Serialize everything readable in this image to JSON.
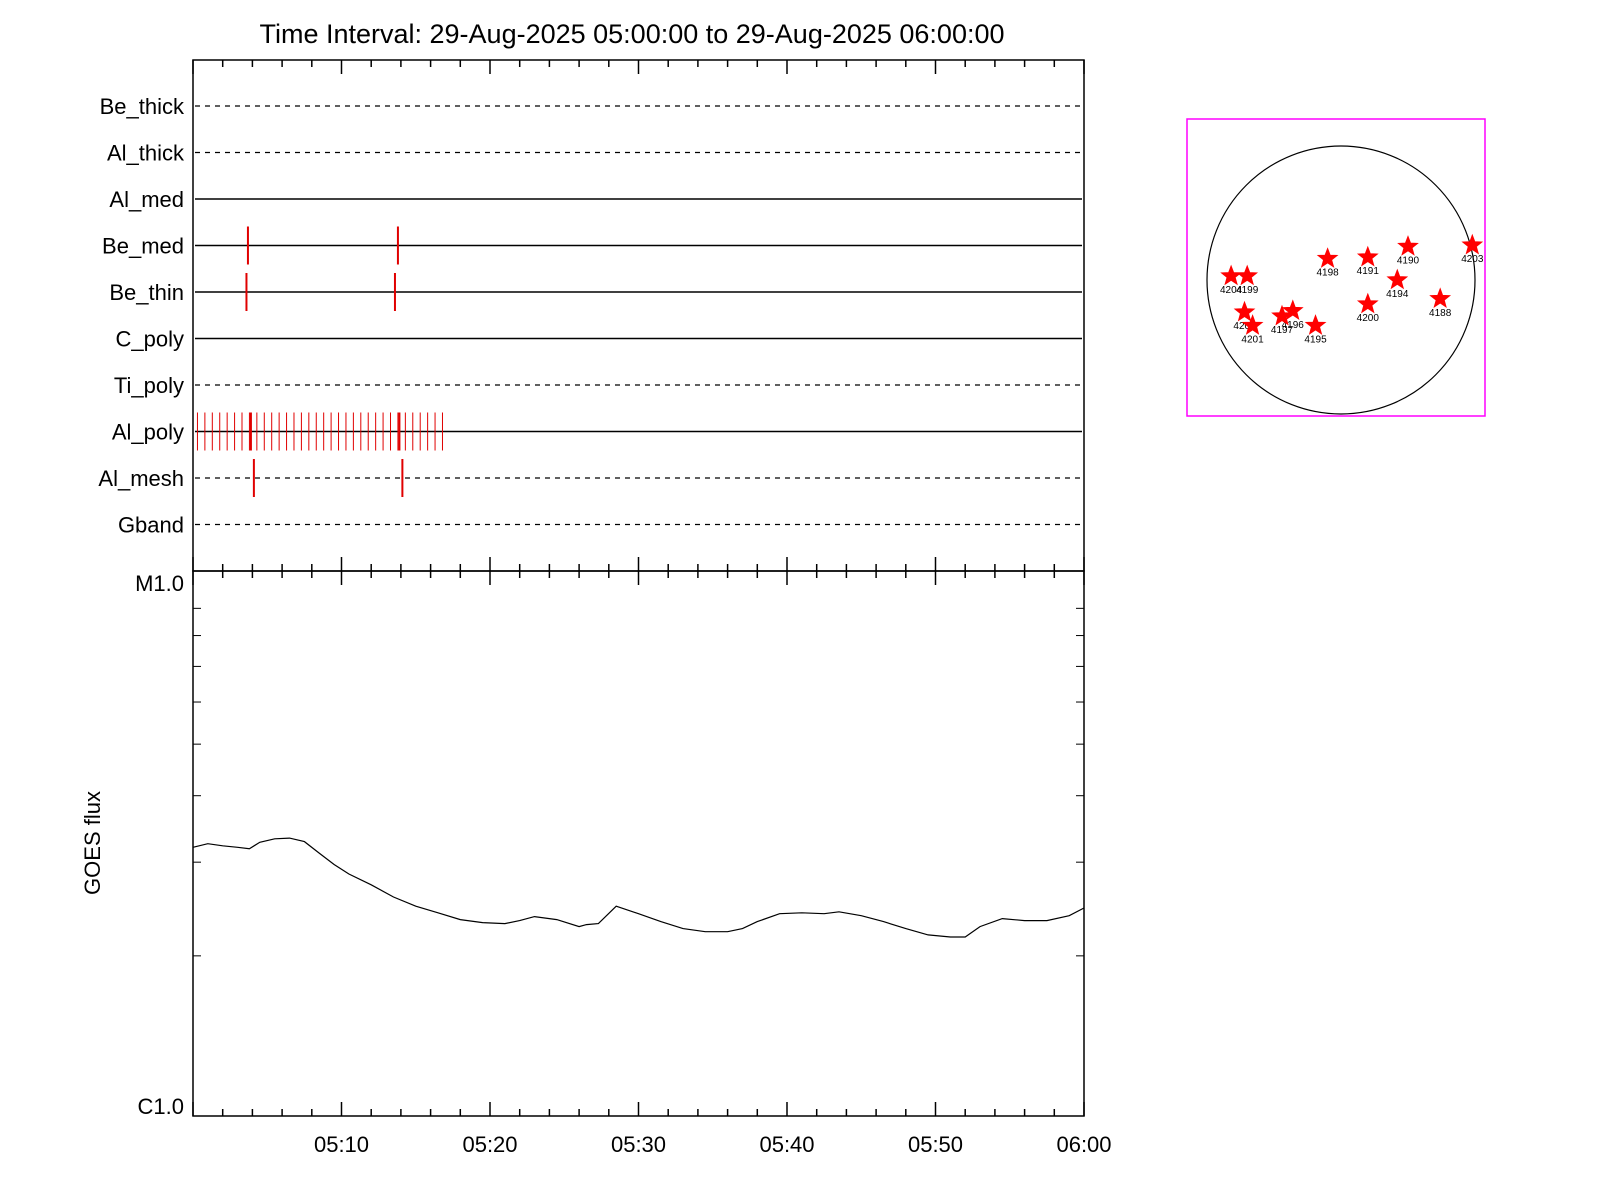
{
  "title": "Time Interval: 29-Aug-2025 05:00:00 to 29-Aug-2025 06:00:00",
  "chart_data": [
    {
      "type": "event-timeline",
      "xlim_minutes": [
        0,
        60
      ],
      "rows": [
        {
          "name": "Be_thick",
          "style": "dashed",
          "events": [],
          "dense": []
        },
        {
          "name": "Al_thick",
          "style": "dashed",
          "events": [],
          "dense": []
        },
        {
          "name": "Al_med",
          "style": "solid",
          "events": [],
          "dense": []
        },
        {
          "name": "Be_med",
          "style": "solid",
          "events": [
            3.7,
            13.8
          ],
          "dense": []
        },
        {
          "name": "Be_thin",
          "style": "solid",
          "events": [
            3.6,
            13.6
          ],
          "dense": []
        },
        {
          "name": "C_poly",
          "style": "solid",
          "events": [],
          "dense": []
        },
        {
          "name": "Ti_poly",
          "style": "dashed",
          "events": [],
          "dense": []
        },
        {
          "name": "Al_poly",
          "style": "solid",
          "events": [
            3.9,
            13.9
          ],
          "dense": [
            0.3,
            0.8,
            1.3,
            1.8,
            2.3,
            2.8,
            3.3,
            3.8,
            4.3,
            4.8,
            5.3,
            5.8,
            6.3,
            6.8,
            7.3,
            7.8,
            8.3,
            8.8,
            9.3,
            9.8,
            10.3,
            10.8,
            11.3,
            11.8,
            12.3,
            12.8,
            13.3,
            13.8,
            14.3,
            14.8,
            15.3,
            15.8,
            16.3,
            16.8
          ]
        },
        {
          "name": "Al_mesh",
          "style": "dashed",
          "events": [
            4.1,
            14.1
          ],
          "dense": []
        },
        {
          "name": "Gband",
          "style": "dashed",
          "events": [],
          "dense": []
        }
      ],
      "event_color": "#e00000"
    },
    {
      "type": "line",
      "ylabel": "GOES flux",
      "y_scale": "log",
      "ylim": [
        1e-06,
        1e-05
      ],
      "y_tick_labels": [
        "C1.0",
        "M1.0"
      ],
      "x_tick_labels": [
        "05:10",
        "05:20",
        "05:30",
        "05:40",
        "05:50",
        "06:00"
      ],
      "x_minutes": [
        0,
        1,
        2,
        3,
        3.8,
        4.5,
        5.5,
        6.5,
        7.5,
        8.5,
        9.5,
        10.5,
        12,
        13.5,
        15,
        16.5,
        18,
        19.5,
        21,
        22,
        23,
        24.5,
        26,
        26.5,
        27.3,
        28.5,
        30,
        31.5,
        33,
        34.5,
        36,
        37,
        38,
        39.5,
        41,
        42.5,
        43.5,
        45,
        46.5,
        48,
        49.5,
        51,
        52,
        53,
        54.5,
        56,
        57.5,
        59,
        60
      ],
      "y_flux": [
        3.2e-06,
        3.25e-06,
        3.22e-06,
        3.2e-06,
        3.18e-06,
        3.27e-06,
        3.32e-06,
        3.33e-06,
        3.28e-06,
        3.12e-06,
        2.97e-06,
        2.85e-06,
        2.72e-06,
        2.58e-06,
        2.48e-06,
        2.41e-06,
        2.34e-06,
        2.31e-06,
        2.3e-06,
        2.33e-06,
        2.37e-06,
        2.34e-06,
        2.27e-06,
        2.29e-06,
        2.3e-06,
        2.48e-06,
        2.4e-06,
        2.32e-06,
        2.25e-06,
        2.22e-06,
        2.22e-06,
        2.25e-06,
        2.32e-06,
        2.4e-06,
        2.41e-06,
        2.4e-06,
        2.42e-06,
        2.38e-06,
        2.32e-06,
        2.25e-06,
        2.19e-06,
        2.17e-06,
        2.17e-06,
        2.27e-06,
        2.35e-06,
        2.33e-06,
        2.33e-06,
        2.38e-06,
        2.46e-06
      ],
      "color": "#000000"
    },
    {
      "type": "scatter",
      "description_kind": "solar-disk-map",
      "frame_color": "#ff00ff",
      "marker_color": "#ff0000",
      "regions": [
        {
          "label": "4190",
          "x": 0.5,
          "y": 0.25
        },
        {
          "label": "4203",
          "x": 0.98,
          "y": 0.26
        },
        {
          "label": "4198",
          "x": -0.1,
          "y": 0.16
        },
        {
          "label": "4191",
          "x": 0.2,
          "y": 0.17
        },
        {
          "label": "4194",
          "x": 0.42,
          "y": 0.0
        },
        {
          "label": "4188",
          "x": 0.74,
          "y": -0.14
        },
        {
          "label": "4200",
          "x": 0.2,
          "y": -0.18
        },
        {
          "label": "4204",
          "x": -0.82,
          "y": 0.03
        },
        {
          "label": "4199",
          "x": -0.7,
          "y": 0.03
        },
        {
          "label": "4202",
          "x": -0.72,
          "y": -0.24
        },
        {
          "label": "4201",
          "x": -0.66,
          "y": -0.34
        },
        {
          "label": "4196",
          "x": -0.36,
          "y": -0.23
        },
        {
          "label": "4197",
          "x": -0.44,
          "y": -0.27
        },
        {
          "label": "4195",
          "x": -0.19,
          "y": -0.34
        }
      ]
    }
  ]
}
